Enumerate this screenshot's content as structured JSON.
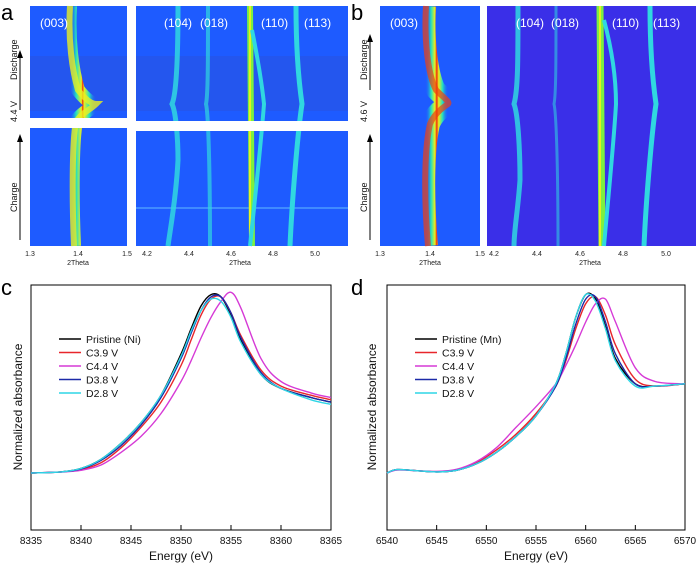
{
  "panels": {
    "a": {
      "letter": "a",
      "voltage_label": "4.4 V",
      "discharge_label": "Discharge",
      "charge_label": "Charge",
      "left": {
        "peaks": [
          "(003)"
        ],
        "xticks": [
          "1.3",
          "1.4",
          "1.5"
        ],
        "xlabel": "2Theta"
      },
      "right": {
        "peaks": [
          "(104)",
          "(018)",
          "(110)",
          "(113)"
        ],
        "xticks": [
          "4.2",
          "4.4",
          "4.6",
          "4.8",
          "5.0"
        ],
        "xlabel": "2Theta"
      }
    },
    "b": {
      "letter": "b",
      "voltage_label": "4.6 V",
      "discharge_label": "Discharge",
      "charge_label": "Charge",
      "left": {
        "peaks": [
          "(003)"
        ],
        "xticks": [
          "1.3",
          "1.4",
          "1.5"
        ],
        "xlabel": "2Theta"
      },
      "right": {
        "peaks": [
          "(104)",
          "(018)",
          "(110)",
          "(113)"
        ],
        "xticks": [
          "4.2",
          "4.4",
          "4.6",
          "4.8",
          "5.0"
        ],
        "xlabel": "2Theta"
      }
    },
    "c": {
      "letter": "c"
    },
    "d": {
      "letter": "d"
    }
  },
  "colors": {
    "pristine": "#000000",
    "c39": "#e8262b",
    "c44": "#d63ad6",
    "d38": "#1c2aa8",
    "d28": "#2fd6e6"
  },
  "chart_data": [
    {
      "id": "c",
      "type": "line",
      "title": "",
      "xlabel": "Energy (eV)",
      "ylabel": "Normalized absorbance",
      "xlim": [
        8335,
        8365
      ],
      "ylim": [
        0,
        1
      ],
      "xticks": [
        "8335",
        "8340",
        "8345",
        "8350",
        "8355",
        "8360",
        "8365"
      ],
      "legend_position": "top-left",
      "series": [
        {
          "name": "Pristine (Ni)",
          "color": "#000000",
          "x": [
            8335,
            8338,
            8340,
            8342,
            8344,
            8346,
            8348,
            8350,
            8351,
            8352,
            8353,
            8354,
            8355,
            8356,
            8358,
            8360,
            8363,
            8365
          ],
          "y": [
            0.0,
            0.005,
            0.02,
            0.06,
            0.13,
            0.22,
            0.34,
            0.52,
            0.63,
            0.73,
            0.78,
            0.77,
            0.69,
            0.58,
            0.43,
            0.37,
            0.33,
            0.31
          ]
        },
        {
          "name": "C3.9 V",
          "color": "#e8262b",
          "x": [
            8335,
            8338,
            8340,
            8342,
            8344,
            8346,
            8348,
            8350,
            8351,
            8352,
            8353,
            8354,
            8355,
            8356,
            8358,
            8360,
            8363,
            8365
          ],
          "y": [
            0.0,
            0.005,
            0.015,
            0.045,
            0.11,
            0.2,
            0.31,
            0.47,
            0.58,
            0.69,
            0.76,
            0.77,
            0.7,
            0.6,
            0.45,
            0.38,
            0.34,
            0.32
          ]
        },
        {
          "name": "C4.4 V",
          "color": "#d63ad6",
          "x": [
            8335,
            8338,
            8340,
            8342,
            8344,
            8346,
            8348,
            8350,
            8351,
            8352,
            8353,
            8354,
            8355,
            8356,
            8358,
            8360,
            8363,
            8365
          ],
          "y": [
            0.0,
            0.004,
            0.012,
            0.035,
            0.09,
            0.16,
            0.26,
            0.4,
            0.49,
            0.59,
            0.68,
            0.75,
            0.79,
            0.72,
            0.5,
            0.4,
            0.35,
            0.33
          ]
        },
        {
          "name": "D3.8 V",
          "color": "#1c2aa8",
          "x": [
            8335,
            8338,
            8340,
            8342,
            8344,
            8346,
            8348,
            8350,
            8351,
            8352,
            8353,
            8354,
            8355,
            8356,
            8358,
            8360,
            8363,
            8365
          ],
          "y": [
            0.0,
            0.005,
            0.018,
            0.055,
            0.12,
            0.21,
            0.33,
            0.5,
            0.61,
            0.71,
            0.77,
            0.77,
            0.7,
            0.59,
            0.44,
            0.37,
            0.33,
            0.31
          ]
        },
        {
          "name": "D2.8 V",
          "color": "#2fd6e6",
          "x": [
            8335,
            8338,
            8340,
            8342,
            8344,
            8346,
            8348,
            8350,
            8351,
            8352,
            8353,
            8354,
            8355,
            8356,
            8358,
            8360,
            8363,
            8365
          ],
          "y": [
            0.0,
            0.005,
            0.02,
            0.06,
            0.13,
            0.22,
            0.34,
            0.51,
            0.62,
            0.71,
            0.76,
            0.75,
            0.68,
            0.57,
            0.43,
            0.37,
            0.32,
            0.3
          ]
        }
      ]
    },
    {
      "id": "d",
      "type": "line",
      "title": "",
      "xlabel": "Energy (eV)",
      "ylabel": "Normalized absorbance",
      "xlim": [
        6540,
        6570
      ],
      "ylim": [
        0,
        1
      ],
      "xticks": [
        "6540",
        "6545",
        "6550",
        "6555",
        "6560",
        "6565",
        "6570"
      ],
      "legend_position": "top-left",
      "series": [
        {
          "name": "Pristine (Mn)",
          "color": "#000000",
          "x": [
            6540,
            6541,
            6543,
            6545,
            6547,
            6549,
            6551,
            6553,
            6555,
            6557,
            6558,
            6559,
            6560,
            6561,
            6562,
            6563,
            6565,
            6567,
            6570
          ],
          "y": [
            0.0,
            0.015,
            0.01,
            0.005,
            0.012,
            0.04,
            0.09,
            0.16,
            0.25,
            0.39,
            0.52,
            0.68,
            0.78,
            0.76,
            0.64,
            0.5,
            0.39,
            0.38,
            0.39
          ]
        },
        {
          "name": "C3.9 V",
          "color": "#e8262b",
          "x": [
            6540,
            6541,
            6543,
            6545,
            6547,
            6549,
            6551,
            6553,
            6555,
            6557,
            6558,
            6559,
            6560,
            6561,
            6562,
            6563,
            6565,
            6567,
            6570
          ],
          "y": [
            0.0,
            0.014,
            0.01,
            0.006,
            0.013,
            0.045,
            0.1,
            0.17,
            0.26,
            0.38,
            0.49,
            0.63,
            0.74,
            0.77,
            0.69,
            0.56,
            0.41,
            0.38,
            0.39
          ]
        },
        {
          "name": "C4.4 V",
          "color": "#d63ad6",
          "x": [
            6540,
            6541,
            6543,
            6545,
            6547,
            6549,
            6551,
            6553,
            6555,
            6557,
            6558,
            6559,
            6560,
            6561,
            6562,
            6563,
            6565,
            6567,
            6570
          ],
          "y": [
            0.0,
            0.013,
            0.01,
            0.007,
            0.016,
            0.05,
            0.11,
            0.2,
            0.29,
            0.39,
            0.47,
            0.56,
            0.66,
            0.74,
            0.76,
            0.66,
            0.46,
            0.4,
            0.39
          ]
        },
        {
          "name": "D3.8 V",
          "color": "#1c2aa8",
          "x": [
            6540,
            6541,
            6543,
            6545,
            6547,
            6549,
            6551,
            6553,
            6555,
            6557,
            6558,
            6559,
            6560,
            6561,
            6562,
            6563,
            6565,
            6567,
            6570
          ],
          "y": [
            0.0,
            0.015,
            0.01,
            0.005,
            0.012,
            0.04,
            0.09,
            0.16,
            0.25,
            0.38,
            0.5,
            0.65,
            0.76,
            0.77,
            0.66,
            0.52,
            0.39,
            0.38,
            0.39
          ]
        },
        {
          "name": "D2.8 V",
          "color": "#2fd6e6",
          "x": [
            6540,
            6541,
            6543,
            6545,
            6547,
            6549,
            6551,
            6553,
            6555,
            6557,
            6558,
            6559,
            6560,
            6561,
            6562,
            6563,
            6565,
            6567,
            6570
          ],
          "y": [
            0.0,
            0.015,
            0.01,
            0.005,
            0.012,
            0.04,
            0.09,
            0.16,
            0.25,
            0.39,
            0.52,
            0.68,
            0.78,
            0.75,
            0.63,
            0.49,
            0.38,
            0.38,
            0.39
          ]
        }
      ]
    }
  ]
}
